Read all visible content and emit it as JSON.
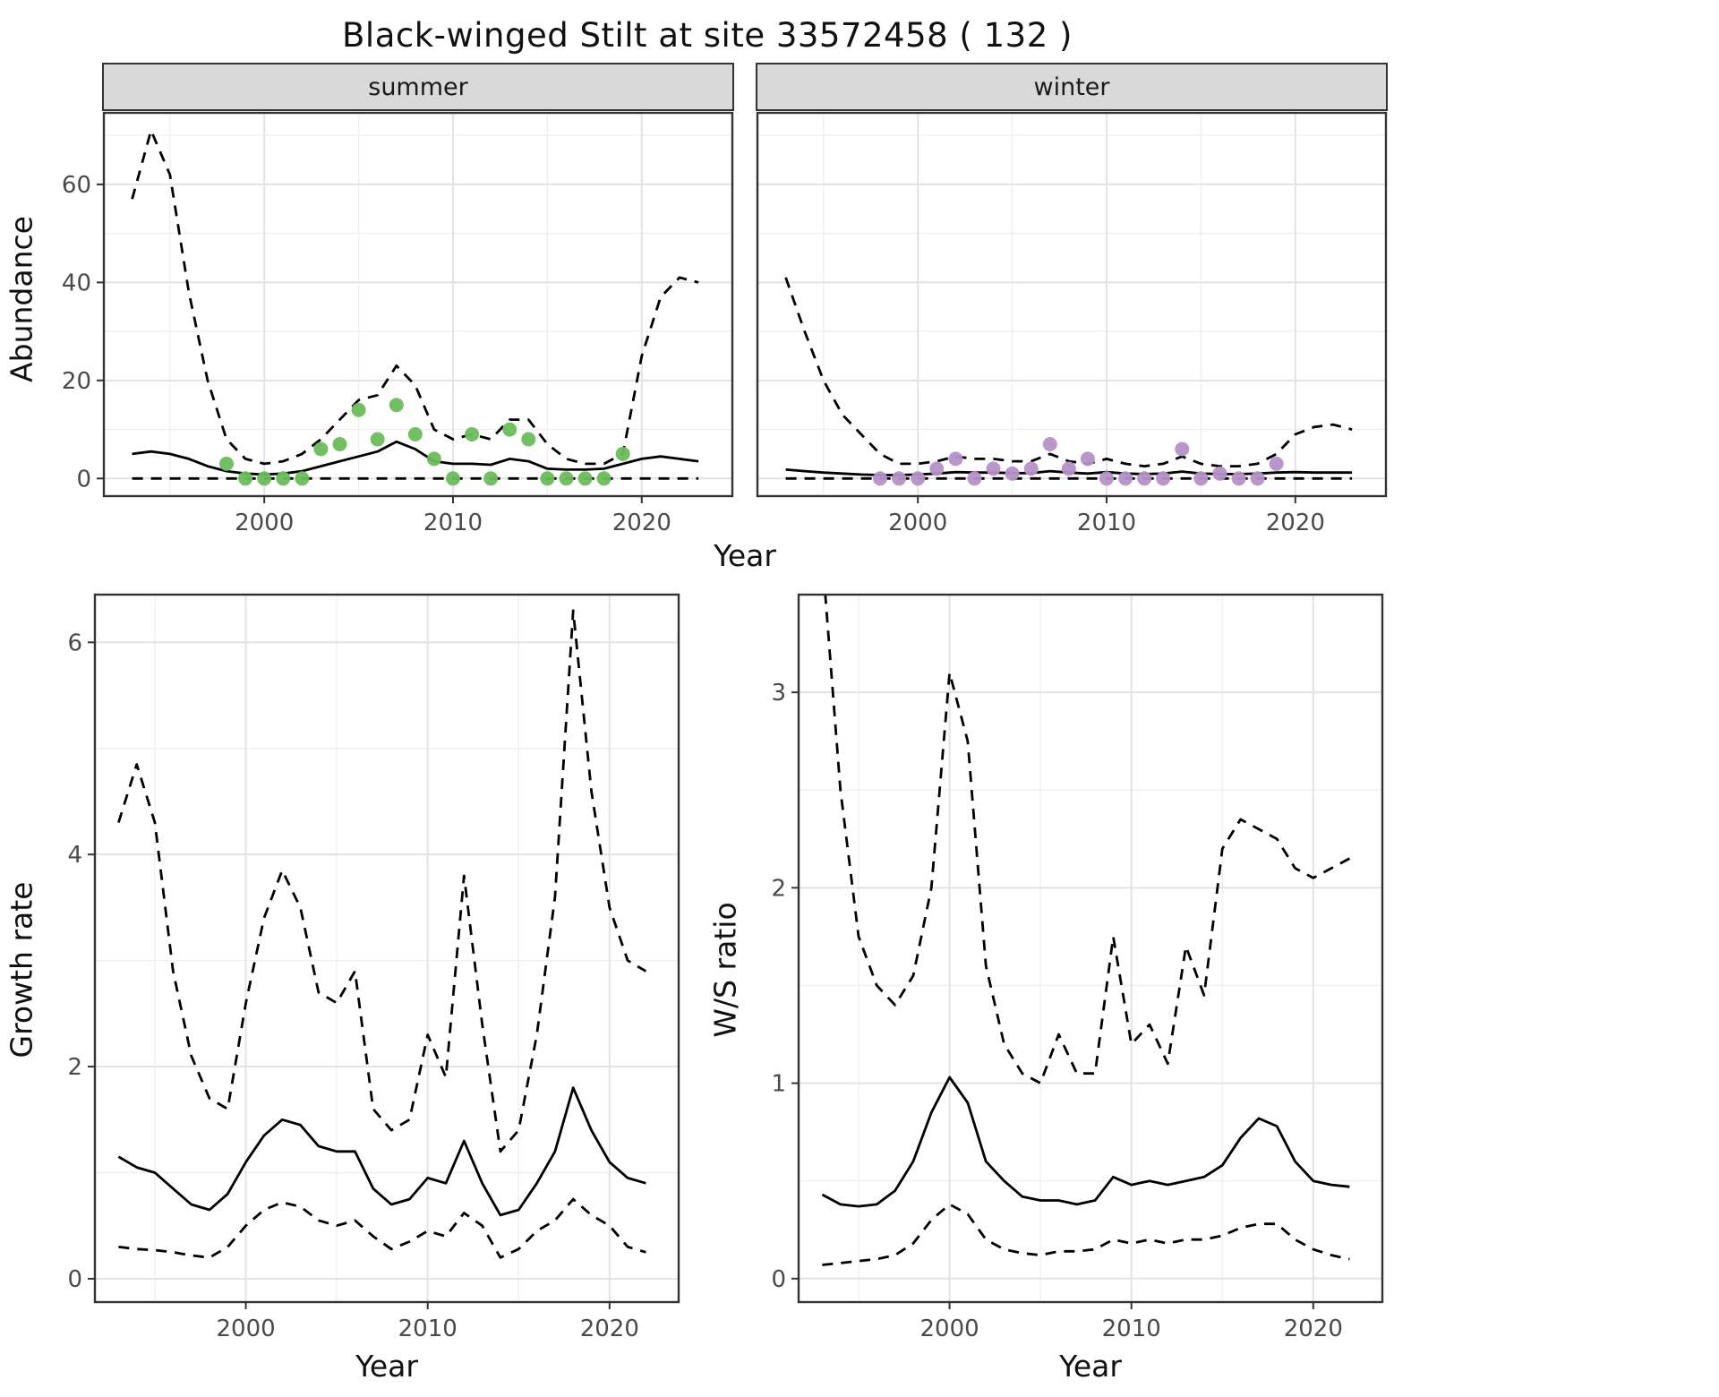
{
  "title": "Black-winged Stilt at site 33572458 ( 132 )",
  "colors": {
    "line": "#000000",
    "grid_major": "#e3e3e3",
    "grid_minor": "#f0f0f0",
    "panel_border": "#333333",
    "strip_bg": "#d9d9d9",
    "tick_text": "#4a4a4a",
    "summer_points": "#69bd58",
    "winter_points": "#b591c8"
  },
  "chart_data": [
    {
      "id": "summer-abundance",
      "type": "line",
      "facet_label": "summer",
      "xlabel": "Year",
      "ylabel": "Abundance",
      "xlim": [
        1991.5,
        2024.8
      ],
      "ylim": [
        -3.6,
        74.6
      ],
      "xticks": [
        2000,
        2010,
        2020
      ],
      "yticks": [
        0,
        20,
        40,
        60
      ],
      "grid": true,
      "legend": "none",
      "x": [
        1993,
        1994,
        1995,
        1996,
        1997,
        1998,
        1999,
        2000,
        2001,
        2002,
        2003,
        2004,
        2005,
        2006,
        2007,
        2008,
        2009,
        2010,
        2011,
        2012,
        2013,
        2014,
        2015,
        2016,
        2017,
        2018,
        2019,
        2020,
        2021,
        2022,
        2023
      ],
      "series": [
        {
          "name": "median",
          "style": "solid",
          "values": [
            5,
            5.5,
            5,
            4,
            2.5,
            1.5,
            1,
            0.8,
            1,
            1.5,
            2.5,
            3.5,
            4.5,
            5.5,
            7.5,
            6,
            3.5,
            3,
            3,
            2.8,
            4,
            3.5,
            2,
            1.8,
            1.8,
            2,
            3,
            4,
            4.5,
            4,
            3.5
          ]
        },
        {
          "name": "upper-ci",
          "style": "dashed",
          "values": [
            57,
            71,
            62,
            38,
            20,
            8,
            4,
            3,
            3.5,
            5,
            8,
            12,
            16,
            17,
            23,
            19,
            10,
            8,
            9,
            8,
            12,
            12,
            7,
            4,
            3,
            3,
            5,
            25,
            37,
            41,
            40
          ]
        },
        {
          "name": "lower-ci",
          "style": "dashed",
          "values": [
            0,
            0,
            0,
            0,
            0,
            0,
            0,
            0,
            0,
            0,
            0,
            0,
            0,
            0,
            0,
            0,
            0,
            0,
            0,
            0,
            0,
            0,
            0,
            0,
            0,
            0,
            0,
            0,
            0,
            0,
            0
          ]
        }
      ],
      "points": {
        "name": "observed-counts",
        "color": "#69bd58",
        "x": [
          1998,
          1999,
          2000,
          2001,
          2002,
          2003,
          2004,
          2005,
          2006,
          2007,
          2008,
          2009,
          2010,
          2011,
          2012,
          2013,
          2014,
          2015,
          2016,
          2017,
          2018,
          2019
        ],
        "y": [
          3,
          0,
          0,
          0,
          0,
          6,
          7,
          14,
          8,
          15,
          9,
          4,
          0,
          9,
          0,
          10,
          8,
          0,
          0,
          0,
          0,
          5
        ]
      }
    },
    {
      "id": "winter-abundance",
      "type": "line",
      "facet_label": "winter",
      "xlabel": "Year",
      "ylabel": "Abundance",
      "xlim": [
        1991.5,
        2024.8
      ],
      "ylim": [
        -3.6,
        74.6
      ],
      "xticks": [
        2000,
        2010,
        2020
      ],
      "yticks": [
        0,
        20,
        40,
        60
      ],
      "grid": true,
      "legend": "none",
      "x": [
        1993,
        1994,
        1995,
        1996,
        1997,
        1998,
        1999,
        2000,
        2001,
        2002,
        2003,
        2004,
        2005,
        2006,
        2007,
        2008,
        2009,
        2010,
        2011,
        2012,
        2013,
        2014,
        2015,
        2016,
        2017,
        2018,
        2019,
        2020,
        2021,
        2022,
        2023
      ],
      "series": [
        {
          "name": "median",
          "style": "solid",
          "values": [
            1.8,
            1.5,
            1.2,
            1,
            0.8,
            0.7,
            0.7,
            0.8,
            1,
            1.3,
            1.2,
            1.2,
            1.1,
            1.1,
            1.5,
            1.2,
            1,
            1.3,
            1,
            0.9,
            1,
            1.4,
            1,
            0.9,
            0.9,
            1,
            1.2,
            1.3,
            1.2,
            1.2,
            1.2
          ]
        },
        {
          "name": "upper-ci",
          "style": "dashed",
          "values": [
            41,
            30,
            20,
            13,
            9,
            5,
            3,
            3,
            3.5,
            4.5,
            4,
            4,
            3.5,
            3.5,
            5,
            3.5,
            3,
            4,
            3,
            2.5,
            3,
            4.5,
            3,
            2.5,
            2.5,
            3,
            5,
            9,
            10.5,
            11,
            10
          ]
        },
        {
          "name": "lower-ci",
          "style": "dashed",
          "values": [
            0,
            0,
            0,
            0,
            0,
            0,
            0,
            0,
            0,
            0,
            0,
            0,
            0,
            0,
            0,
            0,
            0,
            0,
            0,
            0,
            0,
            0,
            0,
            0,
            0,
            0,
            0,
            0,
            0,
            0,
            0
          ]
        }
      ],
      "points": {
        "name": "observed-counts",
        "color": "#b591c8",
        "x": [
          1998,
          1999,
          2000,
          2001,
          2002,
          2003,
          2004,
          2005,
          2006,
          2007,
          2008,
          2009,
          2010,
          2011,
          2012,
          2013,
          2014,
          2015,
          2016,
          2017,
          2018,
          2019
        ],
        "y": [
          0,
          0,
          0,
          2,
          4,
          0,
          2,
          1,
          2,
          7,
          2,
          4,
          0,
          0,
          0,
          0,
          6,
          0,
          1,
          0,
          0,
          3
        ]
      }
    },
    {
      "id": "growth-rate",
      "type": "line",
      "xlabel": "Year",
      "ylabel": "Growth rate",
      "xlim": [
        1991.7,
        2023.8
      ],
      "ylim": [
        -0.22,
        6.45
      ],
      "xticks": [
        2000,
        2010,
        2020
      ],
      "yticks": [
        0,
        2,
        4,
        6
      ],
      "grid": true,
      "legend": "none",
      "x": [
        1993,
        1994,
        1995,
        1996,
        1997,
        1998,
        1999,
        2000,
        2001,
        2002,
        2003,
        2004,
        2005,
        2006,
        2007,
        2008,
        2009,
        2010,
        2011,
        2012,
        2013,
        2014,
        2015,
        2016,
        2017,
        2018,
        2019,
        2020,
        2021,
        2022
      ],
      "series": [
        {
          "name": "median",
          "style": "solid",
          "values": [
            1.15,
            1.05,
            1,
            0.85,
            0.7,
            0.65,
            0.8,
            1.1,
            1.35,
            1.5,
            1.45,
            1.25,
            1.2,
            1.2,
            0.85,
            0.7,
            0.75,
            0.95,
            0.9,
            1.3,
            0.9,
            0.6,
            0.65,
            0.9,
            1.2,
            1.8,
            1.4,
            1.1,
            0.95,
            0.9
          ]
        },
        {
          "name": "upper-ci",
          "style": "dashed",
          "values": [
            4.3,
            4.85,
            4.3,
            2.9,
            2.1,
            1.7,
            1.6,
            2.6,
            3.4,
            3.85,
            3.5,
            2.7,
            2.6,
            2.9,
            1.6,
            1.4,
            1.5,
            2.3,
            1.9,
            3.8,
            2.4,
            1.2,
            1.4,
            2.3,
            3.6,
            6.3,
            4.6,
            3.5,
            3,
            2.9
          ]
        },
        {
          "name": "lower-ci",
          "style": "dashed",
          "values": [
            0.3,
            0.28,
            0.27,
            0.25,
            0.22,
            0.2,
            0.3,
            0.5,
            0.65,
            0.72,
            0.68,
            0.55,
            0.5,
            0.55,
            0.4,
            0.28,
            0.35,
            0.45,
            0.4,
            0.62,
            0.5,
            0.2,
            0.28,
            0.45,
            0.55,
            0.75,
            0.6,
            0.5,
            0.3,
            0.25
          ]
        }
      ]
    },
    {
      "id": "ws-ratio",
      "type": "line",
      "xlabel": "Year",
      "ylabel": "W/S ratio",
      "xlim": [
        1991.7,
        2023.8
      ],
      "ylim": [
        -0.12,
        3.5
      ],
      "xticks": [
        2000,
        2010,
        2020
      ],
      "yticks": [
        0,
        1,
        2,
        3
      ],
      "grid": true,
      "legend": "none",
      "x": [
        1993,
        1994,
        1995,
        1996,
        1997,
        1998,
        1999,
        2000,
        2001,
        2002,
        2003,
        2004,
        2005,
        2006,
        2007,
        2008,
        2009,
        2010,
        2011,
        2012,
        2013,
        2014,
        2015,
        2016,
        2017,
        2018,
        2019,
        2020,
        2021,
        2022
      ],
      "series": [
        {
          "name": "median",
          "style": "solid",
          "values": [
            0.43,
            0.38,
            0.37,
            0.38,
            0.45,
            0.6,
            0.85,
            1.03,
            0.9,
            0.6,
            0.5,
            0.42,
            0.4,
            0.4,
            0.38,
            0.4,
            0.52,
            0.48,
            0.5,
            0.48,
            0.5,
            0.52,
            0.58,
            0.72,
            0.82,
            0.78,
            0.6,
            0.5,
            0.48,
            0.47
          ]
        },
        {
          "name": "upper-ci",
          "style": "dashed",
          "values": [
            3.7,
            2.5,
            1.75,
            1.5,
            1.4,
            1.55,
            2,
            3.1,
            2.75,
            1.6,
            1.2,
            1.05,
            1,
            1.25,
            1.05,
            1.05,
            1.75,
            1.2,
            1.3,
            1.1,
            1.7,
            1.45,
            2.2,
            2.35,
            2.3,
            2.25,
            2.1,
            2.05,
            2.1,
            2.15
          ]
        },
        {
          "name": "lower-ci",
          "style": "dashed",
          "values": [
            0.07,
            0.08,
            0.09,
            0.1,
            0.12,
            0.18,
            0.3,
            0.38,
            0.33,
            0.2,
            0.15,
            0.13,
            0.12,
            0.14,
            0.14,
            0.15,
            0.2,
            0.18,
            0.2,
            0.18,
            0.2,
            0.2,
            0.22,
            0.26,
            0.28,
            0.28,
            0.2,
            0.15,
            0.12,
            0.1
          ]
        }
      ]
    }
  ]
}
